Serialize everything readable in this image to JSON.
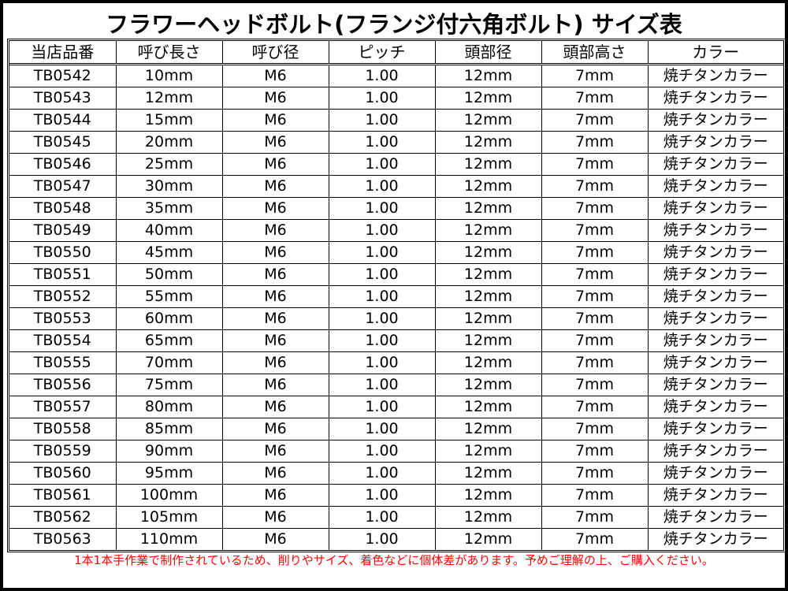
{
  "title": "フラワーヘッドボルト(フランジ付六角ボルト) サイズ表",
  "table": {
    "headers": [
      "当店品番",
      "呼び長さ",
      "呼び径",
      "ピッチ",
      "頭部径",
      "頭部高さ",
      "カラー"
    ],
    "rows": [
      [
        "TB0542",
        "10mm",
        "M6",
        "1.00",
        "12mm",
        "7mm",
        "焼チタンカラー"
      ],
      [
        "TB0543",
        "12mm",
        "M6",
        "1.00",
        "12mm",
        "7mm",
        "焼チタンカラー"
      ],
      [
        "TB0544",
        "15mm",
        "M6",
        "1.00",
        "12mm",
        "7mm",
        "焼チタンカラー"
      ],
      [
        "TB0545",
        "20mm",
        "M6",
        "1.00",
        "12mm",
        "7mm",
        "焼チタンカラー"
      ],
      [
        "TB0546",
        "25mm",
        "M6",
        "1.00",
        "12mm",
        "7mm",
        "焼チタンカラー"
      ],
      [
        "TB0547",
        "30mm",
        "M6",
        "1.00",
        "12mm",
        "7mm",
        "焼チタンカラー"
      ],
      [
        "TB0548",
        "35mm",
        "M6",
        "1.00",
        "12mm",
        "7mm",
        "焼チタンカラー"
      ],
      [
        "TB0549",
        "40mm",
        "M6",
        "1.00",
        "12mm",
        "7mm",
        "焼チタンカラー"
      ],
      [
        "TB0550",
        "45mm",
        "M6",
        "1.00",
        "12mm",
        "7mm",
        "焼チタンカラー"
      ],
      [
        "TB0551",
        "50mm",
        "M6",
        "1.00",
        "12mm",
        "7mm",
        "焼チタンカラー"
      ],
      [
        "TB0552",
        "55mm",
        "M6",
        "1.00",
        "12mm",
        "7mm",
        "焼チタンカラー"
      ],
      [
        "TB0553",
        "60mm",
        "M6",
        "1.00",
        "12mm",
        "7mm",
        "焼チタンカラー"
      ],
      [
        "TB0554",
        "65mm",
        "M6",
        "1.00",
        "12mm",
        "7mm",
        "焼チタンカラー"
      ],
      [
        "TB0555",
        "70mm",
        "M6",
        "1.00",
        "12mm",
        "7mm",
        "焼チタンカラー"
      ],
      [
        "TB0556",
        "75mm",
        "M6",
        "1.00",
        "12mm",
        "7mm",
        "焼チタンカラー"
      ],
      [
        "TB0557",
        "80mm",
        "M6",
        "1.00",
        "12mm",
        "7mm",
        "焼チタンカラー"
      ],
      [
        "TB0558",
        "85mm",
        "M6",
        "1.00",
        "12mm",
        "7mm",
        "焼チタンカラー"
      ],
      [
        "TB0559",
        "90mm",
        "M6",
        "1.00",
        "12mm",
        "7mm",
        "焼チタンカラー"
      ],
      [
        "TB0560",
        "95mm",
        "M6",
        "1.00",
        "12mm",
        "7mm",
        "焼チタンカラー"
      ],
      [
        "TB0561",
        "100mm",
        "M6",
        "1.00",
        "12mm",
        "7mm",
        "焼チタンカラー"
      ],
      [
        "TB0562",
        "105mm",
        "M6",
        "1.00",
        "12mm",
        "7mm",
        "焼チタンカラー"
      ],
      [
        "TB0563",
        "110mm",
        "M6",
        "1.00",
        "12mm",
        "7mm",
        "焼チタンカラー"
      ]
    ]
  },
  "note": "1本1本手作業で制作されているため、削りやサイズ、着色などに個体差があります。予めご理解の上、ご購入ください。",
  "colors": {
    "note": "#ff0000",
    "border": "#000000"
  }
}
